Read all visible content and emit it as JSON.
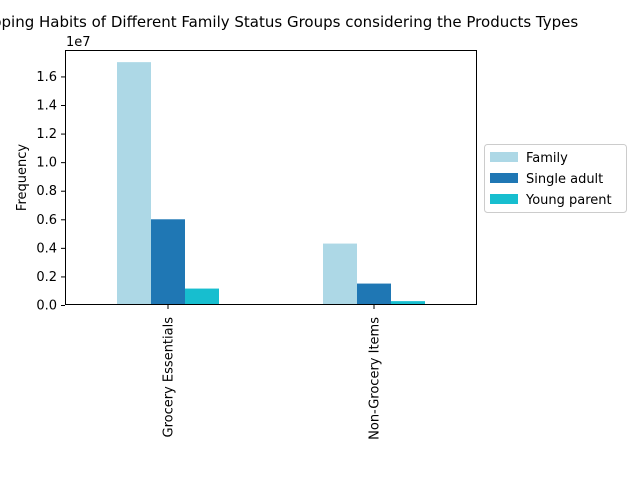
{
  "chart_data": {
    "type": "bar",
    "title": "Shopping Habits of Different Family Status Groups considering the Products Types",
    "xlabel": "",
    "ylabel": "Frequency",
    "y_offset_text": "1e7",
    "y_scale_factor": 10000000,
    "ylim": [
      0,
      17850000
    ],
    "yticks": [
      0,
      2000000,
      4000000,
      6000000,
      8000000,
      10000000,
      12000000,
      14000000,
      16000000
    ],
    "ytick_labels": [
      "0.0",
      "0.2",
      "0.4",
      "0.6",
      "0.8",
      "1.0",
      "1.2",
      "1.4",
      "1.6"
    ],
    "categories": [
      "Grocery Essentials",
      "Non-Grocery Items"
    ],
    "series": [
      {
        "name": "Family",
        "color": "#add8e6",
        "values": [
          17000000,
          4300000
        ]
      },
      {
        "name": "Single adult",
        "color": "#1f77b4",
        "values": [
          6000000,
          1500000
        ]
      },
      {
        "name": "Young parent",
        "color": "#17becf",
        "values": [
          1150000,
          270000
        ]
      }
    ],
    "legend": "right",
    "grid": false
  }
}
